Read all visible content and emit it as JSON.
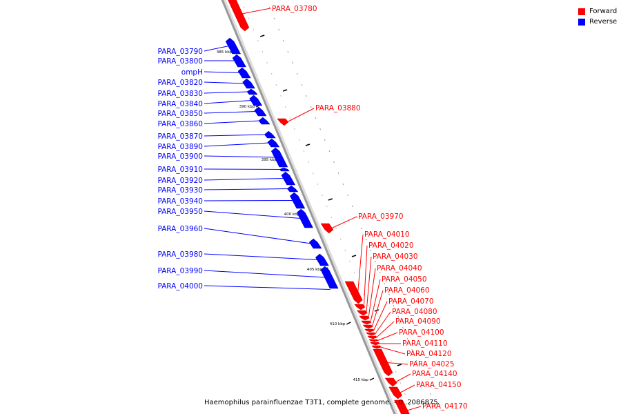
{
  "legend": [
    {
      "label": "Forward",
      "color": "#ff0000"
    },
    {
      "label": "Reverse",
      "color": "#0000ff"
    }
  ],
  "caption": "Haemophilus parainfluenzae T3T1, complete genome. - 0..2086875",
  "colors": {
    "forward": "#ff0000",
    "reverse": "#0000ff",
    "backbone": "#999999"
  },
  "ticks": [
    "385 kbp",
    "390 kbp",
    "395 kbp",
    "400 kbp",
    "405 kbp",
    "410 kbp",
    "415 kbp"
  ],
  "genes": {
    "reverse": [
      "PARA_03790",
      "PARA_03800",
      "ompH",
      "PARA_03820",
      "PARA_03830",
      "PARA_03840",
      "PARA_03850",
      "PARA_03860",
      "PARA_03870",
      "PARA_03890",
      "PARA_03900",
      "PARA_03910",
      "PARA_03920",
      "PARA_03930",
      "PARA_03940",
      "PARA_03950",
      "PARA_03960",
      "PARA_03980",
      "PARA_03990",
      "PARA_04000"
    ],
    "forward": [
      "PARA_03780",
      "PARA_03880",
      "PARA_03970",
      "PARA_04010",
      "PARA_04020",
      "PARA_04030",
      "PARA_04040",
      "PARA_04050",
      "PARA_04060",
      "PARA_04070",
      "PARA_04080",
      "PARA_04090",
      "PARA_04100",
      "PARA_04110",
      "PARA_04120",
      "PARA_04025",
      "PARA_04140",
      "PARA_04150",
      "PARA_04170"
    ]
  }
}
